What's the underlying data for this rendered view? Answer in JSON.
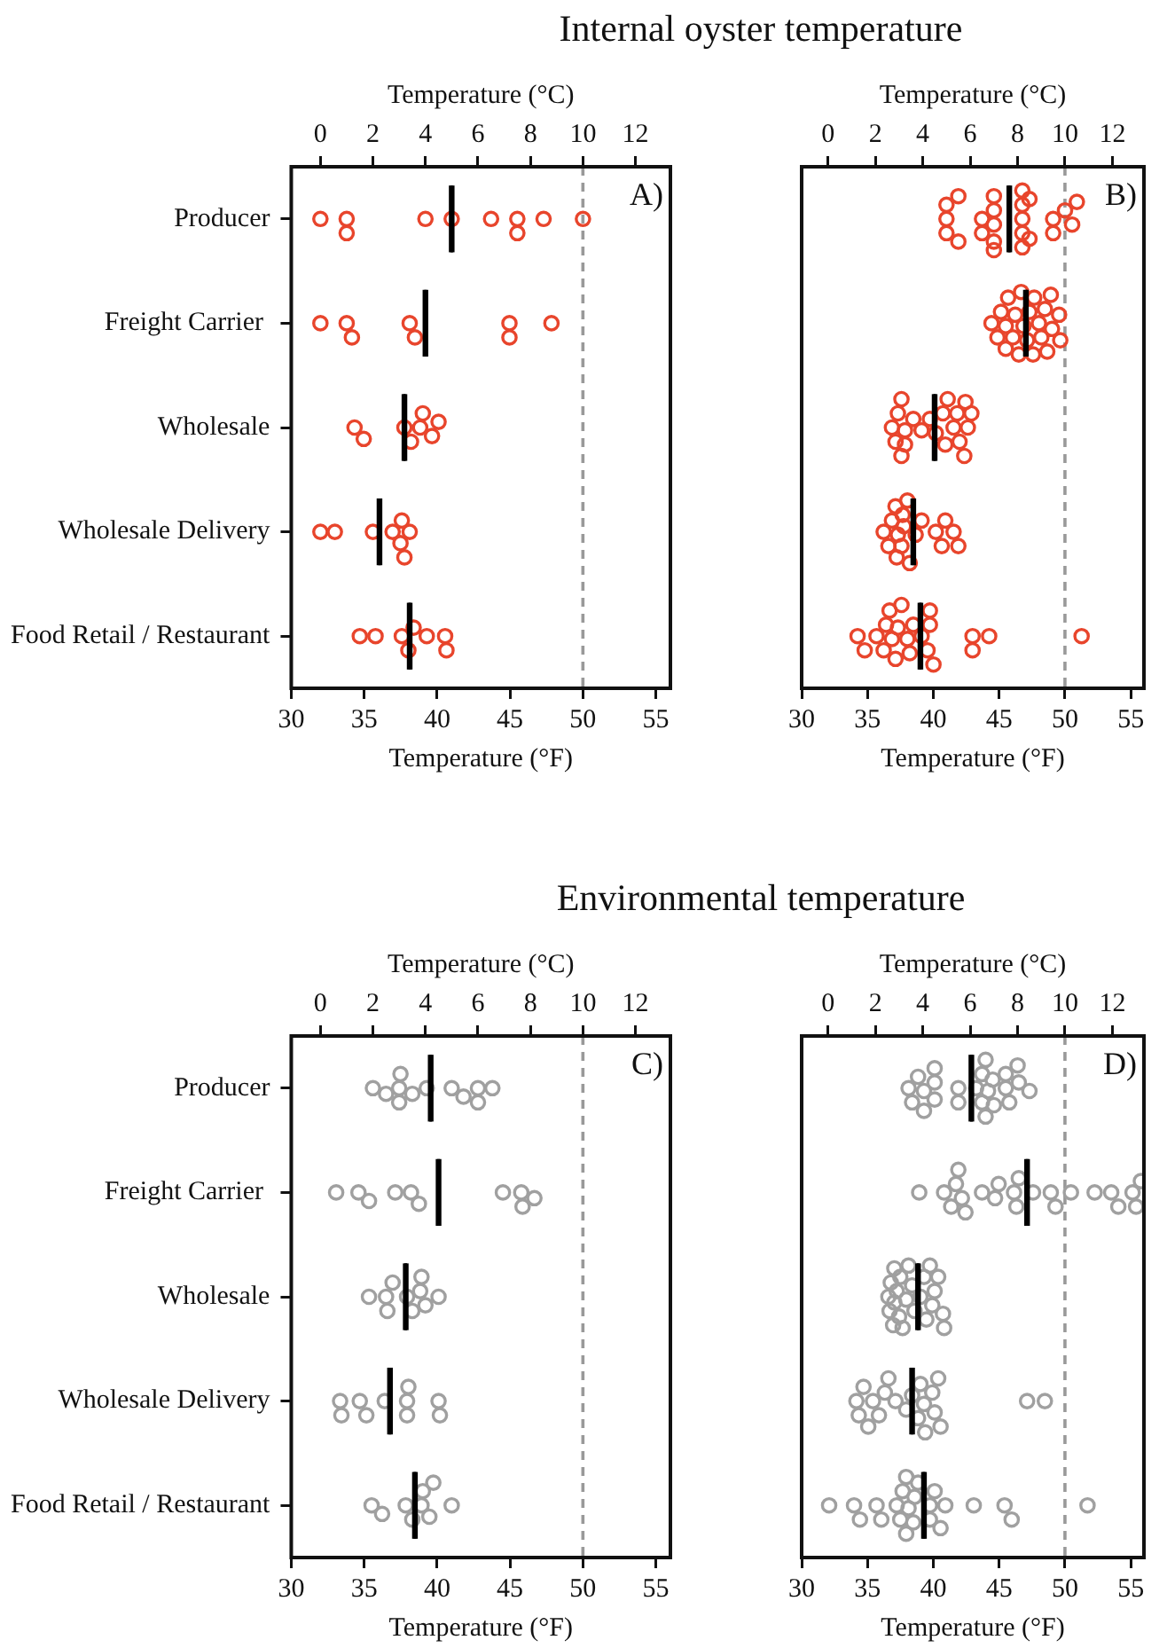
{
  "chart_data": [
    {
      "type": "scatter",
      "title": "Internal oyster temperature",
      "orientation": "horizontal",
      "categories": [
        "Producer",
        "Freight Carrier ",
        "Wholesale",
        "Wholesale Delivery",
        "Food Retail / Restaurant"
      ],
      "xlabel": "Temperature (°F)",
      "x2label": "Temperature (°C)",
      "xlim": [
        30,
        56
      ],
      "xticks": [
        30,
        35,
        40,
        45,
        50,
        55
      ],
      "x2lim": [
        -1.11,
        13.33
      ],
      "x2ticks": [
        0,
        2,
        4,
        6,
        8,
        10,
        12
      ],
      "marker": "circle",
      "annotations": [
        "A)"
      ],
      "ref_lines": [
        {
          "axis": "x",
          "value": 50,
          "color": "#999999",
          "line_style": "dashed"
        }
      ],
      "series": [
        {
          "type": "scatter",
          "axis": "x2",
          "color": "#e8452c",
          "x": [
            "Producer",
            "Producer",
            "Producer",
            "Producer",
            "Producer",
            "Producer",
            "Producer",
            "Producer",
            "Producer",
            "Producer",
            "Freight Carrier ",
            "Freight Carrier ",
            "Freight Carrier ",
            "Freight Carrier ",
            "Freight Carrier ",
            "Freight Carrier ",
            "Freight Carrier ",
            "Freight Carrier ",
            "Wholesale",
            "Wholesale",
            "Wholesale",
            "Wholesale",
            "Wholesale",
            "Wholesale",
            "Wholesale",
            "Wholesale",
            "Wholesale Delivery",
            "Wholesale Delivery",
            "Wholesale Delivery",
            "Wholesale Delivery",
            "Wholesale Delivery",
            "Wholesale Delivery",
            "Wholesale Delivery",
            "Wholesale Delivery",
            "Food Retail / Restaurant",
            "Food Retail / Restaurant",
            "Food Retail / Restaurant",
            "Food Retail / Restaurant",
            "Food Retail / Restaurant",
            "Food Retail / Restaurant",
            "Food Retail / Restaurant",
            "Food Retail / Restaurant"
          ],
          "values": [
            0,
            1,
            1,
            4,
            5,
            6.5,
            7.5,
            7.5,
            8.5,
            10,
            0,
            1,
            1.2,
            3.4,
            3.6,
            7.2,
            7.2,
            8.8,
            1.3,
            1.65,
            3.2,
            3.45,
            3.8,
            3.9,
            4.25,
            4.5,
            0,
            0.55,
            2,
            2.75,
            3.05,
            3.1,
            3.2,
            3.4,
            1.5,
            2.1,
            3.1,
            3.35,
            3.55,
            4.05,
            4.75,
            4.8
          ]
        },
        {
          "type": "box",
          "axis": "x2",
          "color": "#000000",
          "boxes": [
            {
              "low": 5,
              "q1": 5,
              "median": 5,
              "q3": 5,
              "high": 5
            },
            {
              "low": 4,
              "q1": 4,
              "median": 4,
              "q3": 4,
              "high": 4
            },
            {
              "low": 3.2,
              "q1": 3.2,
              "median": 3.2,
              "q3": 3.2,
              "high": 3.2
            },
            {
              "low": 2.25,
              "q1": 2.25,
              "median": 2.25,
              "q3": 2.25,
              "high": 2.25
            },
            {
              "low": 3.4,
              "q1": 3.4,
              "median": 3.4,
              "q3": 3.4,
              "high": 3.4
            }
          ]
        }
      ]
    },
    {
      "type": "scatter",
      "orientation": "horizontal",
      "categories": [
        "Producer",
        "Freight Carrier ",
        "Wholesale",
        "Wholesale Delivery",
        "Food Retail / Restaurant"
      ],
      "xlabel": "Temperature (°F)",
      "x2label": "Temperature (°C)",
      "xlim": [
        30,
        56
      ],
      "xticks": [
        30,
        35,
        40,
        45,
        50,
        55
      ],
      "x2lim": [
        -1.11,
        13.33
      ],
      "x2ticks": [
        0,
        2,
        4,
        6,
        8,
        10,
        12
      ],
      "tick_labels": "x",
      "marker": "circle",
      "annotations": [
        "B)"
      ],
      "ref_lines": [
        {
          "axis": "x",
          "value": 50,
          "color": "#999999",
          "line_style": "dashed"
        }
      ],
      "series": [
        {
          "type": "scatter",
          "axis": "x2",
          "color": "#e8452c",
          "x": [
            "Producer",
            "Producer",
            "Producer",
            "Producer",
            "Producer",
            "Producer",
            "Producer",
            "Producer",
            "Producer",
            "Producer",
            "Producer",
            "Producer",
            "Producer",
            "Producer",
            "Producer",
            "Producer",
            "Producer",
            "Producer",
            "Producer",
            "Producer",
            "Producer",
            "Producer",
            "Producer",
            "Producer",
            "Freight Carrier ",
            "Freight Carrier ",
            "Freight Carrier ",
            "Freight Carrier ",
            "Freight Carrier ",
            "Freight Carrier ",
            "Freight Carrier ",
            "Freight Carrier ",
            "Freight Carrier ",
            "Freight Carrier ",
            "Freight Carrier ",
            "Freight Carrier ",
            "Freight Carrier ",
            "Freight Carrier ",
            "Freight Carrier ",
            "Freight Carrier ",
            "Freight Carrier ",
            "Freight Carrier ",
            "Freight Carrier ",
            "Freight Carrier ",
            "Freight Carrier ",
            "Freight Carrier ",
            "Freight Carrier ",
            "Wholesale",
            "Wholesale",
            "Wholesale",
            "Wholesale",
            "Wholesale",
            "Wholesale",
            "Wholesale",
            "Wholesale",
            "Wholesale",
            "Wholesale",
            "Wholesale",
            "Wholesale",
            "Wholesale",
            "Wholesale",
            "Wholesale",
            "Wholesale",
            "Wholesale",
            "Wholesale",
            "Wholesale",
            "Wholesale",
            "Wholesale",
            "Wholesale Delivery",
            "Wholesale Delivery",
            "Wholesale Delivery",
            "Wholesale Delivery",
            "Wholesale Delivery",
            "Wholesale Delivery",
            "Wholesale Delivery",
            "Wholesale Delivery",
            "Wholesale Delivery",
            "Wholesale Delivery",
            "Wholesale Delivery",
            "Wholesale Delivery",
            "Wholesale Delivery",
            "Wholesale Delivery",
            "Wholesale Delivery",
            "Wholesale Delivery",
            "Wholesale Delivery",
            "Wholesale Delivery",
            "Food Retail / Restaurant",
            "Food Retail / Restaurant",
            "Food Retail / Restaurant",
            "Food Retail / Restaurant",
            "Food Retail / Restaurant",
            "Food Retail / Restaurant",
            "Food Retail / Restaurant",
            "Food Retail / Restaurant",
            "Food Retail / Restaurant",
            "Food Retail / Restaurant",
            "Food Retail / Restaurant",
            "Food Retail / Restaurant",
            "Food Retail / Restaurant",
            "Food Retail / Restaurant",
            "Food Retail / Restaurant",
            "Food Retail / Restaurant",
            "Food Retail / Restaurant",
            "Food Retail / Restaurant",
            "Food Retail / Restaurant",
            "Food Retail / Restaurant",
            "Food Retail / Restaurant",
            "Food Retail / Restaurant"
          ],
          "values": [
            5.5,
            5.5,
            5,
            5,
            5,
            6.5,
            6.5,
            7,
            7,
            7,
            7,
            7,
            8.2,
            8.2,
            8.2,
            8.2,
            8.2,
            8.5,
            8.5,
            9.5,
            9.5,
            10,
            10.5,
            10.3,
            6.9,
            7.15,
            7.3,
            7.5,
            7.5,
            7.6,
            7.8,
            7.9,
            8.05,
            8.15,
            8.25,
            8.4,
            8.5,
            8.65,
            8.7,
            8.9,
            9,
            9.15,
            9.25,
            9.4,
            9.45,
            9.75,
            9.8,
            2.7,
            2.85,
            2.95,
            3.1,
            3.1,
            3.25,
            3.25,
            3.6,
            3.95,
            4.3,
            4.55,
            4.85,
            4.95,
            5.05,
            5.3,
            5.45,
            5.55,
            5.75,
            5.8,
            5.9,
            6.05,
            2.35,
            2.55,
            2.7,
            2.85,
            2.9,
            2.95,
            3.1,
            3.15,
            3.2,
            3.35,
            3.45,
            3.7,
            3.95,
            4.55,
            4.8,
            4.95,
            5.3,
            5.5,
            1.25,
            1.55,
            2.05,
            2.35,
            2.45,
            2.6,
            2.7,
            2.85,
            2.95,
            3.1,
            3.35,
            3.45,
            3.6,
            3.95,
            4.2,
            4.3,
            4.3,
            4.45,
            6.1,
            6.1,
            6.8,
            10.7
          ]
        },
        {
          "type": "box",
          "axis": "x2",
          "color": "#000000",
          "boxes": [
            {
              "low": 7.65,
              "q1": 7.65,
              "median": 7.65,
              "q3": 7.65,
              "high": 7.65
            },
            {
              "low": 8.35,
              "q1": 8.35,
              "median": 8.35,
              "q3": 8.35,
              "high": 8.35
            },
            {
              "low": 4.5,
              "q1": 4.5,
              "median": 4.5,
              "q3": 4.5,
              "high": 4.5
            },
            {
              "low": 3.6,
              "q1": 3.6,
              "median": 3.6,
              "q3": 3.6,
              "high": 3.6
            },
            {
              "low": 3.9,
              "q1": 3.9,
              "median": 3.9,
              "q3": 3.9,
              "high": 3.9
            }
          ]
        }
      ]
    },
    {
      "type": "scatter",
      "title": "Environmental temperature",
      "orientation": "horizontal",
      "categories": [
        "Producer",
        "Freight Carrier ",
        "Wholesale",
        "Wholesale Delivery",
        "Food Retail / Restaurant"
      ],
      "xlabel": "Temperature (°F)",
      "x2label": "Temperature (°C)",
      "xlim": [
        30,
        56
      ],
      "xticks": [
        30,
        35,
        40,
        45,
        50,
        55
      ],
      "x2lim": [
        -1.11,
        13.33
      ],
      "x2ticks": [
        0,
        2,
        4,
        6,
        8,
        10,
        12
      ],
      "marker": "circle",
      "annotations": [
        "C)"
      ],
      "ref_lines": [
        {
          "axis": "x",
          "value": 50,
          "color": "#999999",
          "line_style": "dashed"
        }
      ],
      "series": [
        {
          "type": "scatter",
          "axis": "x2",
          "color": "#a0a0a0",
          "x": [
            "Producer",
            "Producer",
            "Producer",
            "Producer",
            "Producer",
            "Producer",
            "Producer",
            "Producer",
            "Producer",
            "Producer",
            "Producer",
            "Producer",
            "Freight Carrier ",
            "Freight Carrier ",
            "Freight Carrier ",
            "Freight Carrier ",
            "Freight Carrier ",
            "Freight Carrier ",
            "Freight Carrier ",
            "Freight Carrier ",
            "Freight Carrier ",
            "Freight Carrier ",
            "Wholesale",
            "Wholesale",
            "Wholesale",
            "Wholesale",
            "Wholesale",
            "Wholesale",
            "Wholesale",
            "Wholesale",
            "Wholesale",
            "Wholesale",
            "Wholesale Delivery",
            "Wholesale Delivery",
            "Wholesale Delivery",
            "Wholesale Delivery",
            "Wholesale Delivery",
            "Wholesale Delivery",
            "Wholesale Delivery",
            "Wholesale Delivery",
            "Wholesale Delivery",
            "Wholesale Delivery",
            "Food Retail / Restaurant",
            "Food Retail / Restaurant",
            "Food Retail / Restaurant",
            "Food Retail / Restaurant",
            "Food Retail / Restaurant",
            "Food Retail / Restaurant",
            "Food Retail / Restaurant",
            "Food Retail / Restaurant",
            "Food Retail / Restaurant"
          ],
          "values": [
            2,
            2.5,
            3,
            3,
            3.05,
            3.5,
            4.05,
            5,
            5.45,
            6,
            6,
            6.55,
            0.6,
            1.45,
            1.85,
            2.85,
            3.45,
            3.75,
            6.95,
            7.65,
            7.7,
            8.15,
            1.85,
            2.5,
            2.55,
            2.75,
            3.3,
            3.5,
            3.8,
            3.85,
            4,
            4.5,
            0.75,
            0.8,
            1.5,
            1.75,
            2.45,
            3.3,
            3.3,
            3.35,
            4.5,
            4.55,
            1.95,
            2.35,
            3.25,
            3.5,
            3.85,
            3.9,
            4.15,
            4.3,
            5
          ]
        },
        {
          "type": "box",
          "axis": "x2",
          "color": "#000000",
          "boxes": [
            {
              "low": 4.2,
              "q1": 4.2,
              "median": 4.2,
              "q3": 4.2,
              "high": 4.2
            },
            {
              "low": 4.5,
              "q1": 4.5,
              "median": 4.5,
              "q3": 4.5,
              "high": 4.5
            },
            {
              "low": 3.25,
              "q1": 3.25,
              "median": 3.25,
              "q3": 3.25,
              "high": 3.25
            },
            {
              "low": 2.65,
              "q1": 2.65,
              "median": 2.65,
              "q3": 2.65,
              "high": 2.65
            },
            {
              "low": 3.6,
              "q1": 3.6,
              "median": 3.6,
              "q3": 3.6,
              "high": 3.6
            }
          ]
        }
      ]
    },
    {
      "type": "scatter",
      "orientation": "horizontal",
      "categories": [
        "Producer",
        "Freight Carrier ",
        "Wholesale",
        "Wholesale Delivery",
        "Food Retail / Restaurant"
      ],
      "xlabel": "Temperature (°F)",
      "x2label": "Temperature (°C)",
      "xlim": [
        30,
        56
      ],
      "xticks": [
        30,
        35,
        40,
        45,
        50,
        55
      ],
      "x2lim": [
        -1.11,
        13.33
      ],
      "x2ticks": [
        0,
        2,
        4,
        6,
        8,
        10,
        12
      ],
      "tick_labels": "x",
      "marker": "circle",
      "annotations": [
        "D)"
      ],
      "ref_lines": [
        {
          "axis": "x",
          "value": 50,
          "color": "#999999",
          "line_style": "dashed"
        }
      ],
      "series": [
        {
          "type": "scatter",
          "axis": "x2",
          "color": "#a0a0a0",
          "x": [
            "Producer",
            "Producer",
            "Producer",
            "Producer",
            "Producer",
            "Producer",
            "Producer",
            "Producer",
            "Producer",
            "Producer",
            "Producer",
            "Producer",
            "Producer",
            "Producer",
            "Producer",
            "Producer",
            "Producer",
            "Producer",
            "Producer",
            "Producer",
            "Producer",
            "Producer",
            "Producer",
            "Producer",
            "Freight Carrier ",
            "Freight Carrier ",
            "Freight Carrier ",
            "Freight Carrier ",
            "Freight Carrier ",
            "Freight Carrier ",
            "Freight Carrier ",
            "Freight Carrier ",
            "Freight Carrier ",
            "Freight Carrier ",
            "Freight Carrier ",
            "Freight Carrier ",
            "Freight Carrier ",
            "Freight Carrier ",
            "Freight Carrier ",
            "Freight Carrier ",
            "Freight Carrier ",
            "Freight Carrier ",
            "Freight Carrier ",
            "Freight Carrier ",
            "Freight Carrier ",
            "Freight Carrier ",
            "Freight Carrier ",
            "Wholesale",
            "Wholesale",
            "Wholesale",
            "Wholesale",
            "Wholesale",
            "Wholesale",
            "Wholesale",
            "Wholesale",
            "Wholesale",
            "Wholesale",
            "Wholesale",
            "Wholesale",
            "Wholesale",
            "Wholesale",
            "Wholesale",
            "Wholesale",
            "Wholesale",
            "Wholesale",
            "Wholesale",
            "Wholesale",
            "Wholesale",
            "Wholesale",
            "Wholesale",
            "Wholesale Delivery",
            "Wholesale Delivery",
            "Wholesale Delivery",
            "Wholesale Delivery",
            "Wholesale Delivery",
            "Wholesale Delivery",
            "Wholesale Delivery",
            "Wholesale Delivery",
            "Wholesale Delivery",
            "Wholesale Delivery",
            "Wholesale Delivery",
            "Wholesale Delivery",
            "Wholesale Delivery",
            "Wholesale Delivery",
            "Wholesale Delivery",
            "Wholesale Delivery",
            "Wholesale Delivery",
            "Wholesale Delivery",
            "Wholesale Delivery",
            "Wholesale Delivery",
            "Wholesale Delivery",
            "Food Retail / Restaurant",
            "Food Retail / Restaurant",
            "Food Retail / Restaurant",
            "Food Retail / Restaurant",
            "Food Retail / Restaurant",
            "Food Retail / Restaurant",
            "Food Retail / Restaurant",
            "Food Retail / Restaurant",
            "Food Retail / Restaurant",
            "Food Retail / Restaurant",
            "Food Retail / Restaurant",
            "Food Retail / Restaurant",
            "Food Retail / Restaurant",
            "Food Retail / Restaurant",
            "Food Retail / Restaurant",
            "Food Retail / Restaurant",
            "Food Retail / Restaurant",
            "Food Retail / Restaurant",
            "Food Retail / Restaurant",
            "Food Retail / Restaurant",
            "Food Retail / Restaurant",
            "Food Retail / Restaurant",
            "Food Retail / Restaurant"
          ],
          "values": [
            3.4,
            3.55,
            3.8,
            4.05,
            4.05,
            4.5,
            4.5,
            4.5,
            5.5,
            5.5,
            6.25,
            6.5,
            6.5,
            6.65,
            6.65,
            6.75,
            6.95,
            7,
            7.5,
            7.5,
            7.65,
            8,
            8.05,
            8.5,
            3.85,
            4.9,
            5.2,
            5.4,
            5.5,
            5.65,
            5.8,
            6.5,
            7.05,
            7.2,
            7.85,
            7.95,
            8.05,
            8.65,
            9.4,
            9.6,
            10.25,
            11.25,
            11.95,
            12.25,
            12.85,
            13,
            13.2,
            2.55,
            2.6,
            2.65,
            2.75,
            2.8,
            2.8,
            2.9,
            3,
            3.05,
            3.15,
            3.3,
            3.4,
            3.55,
            3.65,
            3.9,
            4.05,
            4.15,
            4.3,
            4.4,
            4.5,
            4.65,
            4.85,
            4.9,
            1.2,
            1.3,
            1.5,
            1.7,
            1.9,
            2.15,
            2.4,
            2.55,
            2.85,
            3.3,
            3.55,
            3.8,
            3.9,
            4.05,
            4.1,
            4.4,
            4.5,
            4.65,
            4.75,
            8.4,
            9.15,
            0.05,
            1.1,
            1.35,
            2.05,
            2.25,
            2.9,
            3.05,
            3.15,
            3.3,
            3.3,
            3.4,
            3.6,
            3.65,
            3.8,
            4.3,
            4.3,
            4.5,
            4.75,
            4.95,
            6.15,
            7.45,
            7.75,
            10.95
          ]
        },
        {
          "type": "box",
          "axis": "x2",
          "color": "#000000",
          "boxes": [
            {
              "low": 6.05,
              "q1": 6.05,
              "median": 6.05,
              "q3": 6.05,
              "high": 6.05
            },
            {
              "low": 8.4,
              "q1": 8.4,
              "median": 8.4,
              "q3": 8.4,
              "high": 8.4
            },
            {
              "low": 3.8,
              "q1": 3.8,
              "median": 3.8,
              "q3": 3.8,
              "high": 3.8
            },
            {
              "low": 3.55,
              "q1": 3.55,
              "median": 3.55,
              "q3": 3.55,
              "high": 3.55
            },
            {
              "low": 4.05,
              "q1": 4.05,
              "median": 4.05,
              "q3": 4.05,
              "high": 4.05
            }
          ]
        }
      ]
    }
  ]
}
